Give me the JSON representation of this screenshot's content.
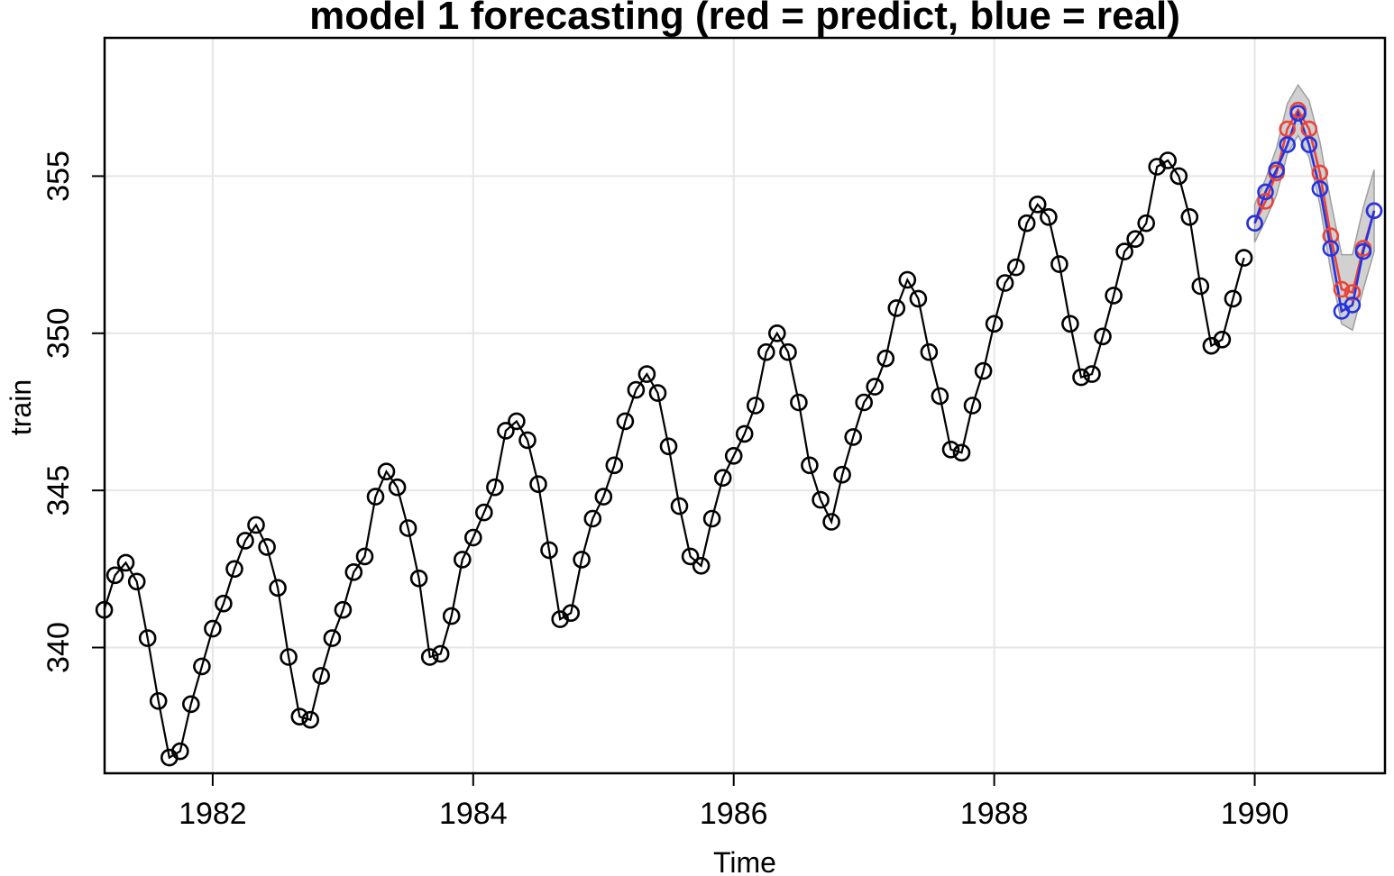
{
  "chart_data": {
    "type": "line",
    "title": "model 1 forecasting (red = predict, blue = real)",
    "xlabel": "Time",
    "ylabel": "train",
    "xlim": [
      1981.17,
      1991.0
    ],
    "ylim": [
      336.0,
      359.4
    ],
    "xticks": [
      1982,
      1984,
      1986,
      1988,
      1990
    ],
    "yticks": [
      340,
      345,
      350,
      355
    ],
    "grid": true,
    "colors": {
      "train": "#000000",
      "predict": "#e8443a",
      "real": "#2433e0",
      "band": "#bdbdbd"
    },
    "series": [
      {
        "role": "train",
        "x": [
          1981.167,
          1981.25,
          1981.333,
          1981.417,
          1981.5,
          1981.583,
          1981.667,
          1981.75,
          1981.833,
          1981.917,
          1982.0,
          1982.083,
          1982.167,
          1982.25,
          1982.333,
          1982.417,
          1982.5,
          1982.583,
          1982.667,
          1982.75,
          1982.833,
          1982.917,
          1983.0,
          1983.083,
          1983.167,
          1983.25,
          1983.333,
          1983.417,
          1983.5,
          1983.583,
          1983.667,
          1983.75,
          1983.833,
          1983.917,
          1984.0,
          1984.083,
          1984.167,
          1984.25,
          1984.333,
          1984.417,
          1984.5,
          1984.583,
          1984.667,
          1984.75,
          1984.833,
          1984.917,
          1985.0,
          1985.083,
          1985.167,
          1985.25,
          1985.333,
          1985.417,
          1985.5,
          1985.583,
          1985.667,
          1985.75,
          1985.833,
          1985.917,
          1986.0,
          1986.083,
          1986.167,
          1986.25,
          1986.333,
          1986.417,
          1986.5,
          1986.583,
          1986.667,
          1986.75,
          1986.833,
          1986.917,
          1987.0,
          1987.083,
          1987.167,
          1987.25,
          1987.333,
          1987.417,
          1987.5,
          1987.583,
          1987.667,
          1987.75,
          1987.833,
          1987.917,
          1988.0,
          1988.083,
          1988.167,
          1988.25,
          1988.333,
          1988.417,
          1988.5,
          1988.583,
          1988.667,
          1988.75,
          1988.833,
          1988.917,
          1989.0,
          1989.083,
          1989.167,
          1989.25,
          1989.333,
          1989.417,
          1989.5,
          1989.583,
          1989.667,
          1989.75,
          1989.833,
          1989.917
        ],
        "values": [
          341.2,
          342.3,
          342.7,
          342.1,
          340.3,
          338.3,
          336.5,
          336.7,
          338.2,
          339.4,
          340.6,
          341.4,
          342.5,
          343.4,
          343.9,
          343.2,
          341.9,
          339.7,
          337.8,
          337.7,
          339.1,
          340.3,
          341.2,
          342.4,
          342.9,
          344.8,
          345.6,
          345.1,
          343.8,
          342.2,
          339.7,
          339.8,
          341.0,
          342.8,
          343.5,
          344.3,
          345.1,
          346.9,
          347.2,
          346.6,
          345.2,
          343.1,
          340.9,
          341.1,
          342.8,
          344.1,
          344.8,
          345.8,
          347.2,
          348.2,
          348.7,
          348.1,
          346.4,
          344.5,
          342.9,
          342.6,
          344.1,
          345.4,
          346.1,
          346.8,
          347.7,
          349.4,
          350.0,
          349.4,
          347.8,
          345.8,
          344.7,
          344.0,
          345.5,
          346.7,
          347.8,
          348.3,
          349.2,
          350.8,
          351.7,
          351.1,
          349.4,
          348.0,
          346.3,
          346.2,
          347.7,
          348.8,
          350.3,
          351.6,
          352.1,
          353.5,
          354.1,
          353.7,
          352.2,
          350.3,
          348.6,
          348.7,
          349.9,
          351.2,
          352.6,
          353.0,
          353.5,
          355.3,
          355.5,
          355.0,
          353.7,
          351.5,
          349.6,
          349.8,
          351.1,
          352.4
        ]
      },
      {
        "role": "predict",
        "x": [
          1990.0,
          1990.083,
          1990.167,
          1990.25,
          1990.333,
          1990.417,
          1990.5,
          1990.583,
          1990.667,
          1990.75,
          1990.833,
          1990.917
        ],
        "values": [
          353.5,
          354.2,
          355.1,
          356.5,
          357.1,
          356.5,
          355.1,
          353.1,
          351.4,
          351.3,
          352.7,
          353.9
        ],
        "lower": [
          352.9,
          353.6,
          354.4,
          355.7,
          356.3,
          355.6,
          354.1,
          352.0,
          350.3,
          350.1,
          351.4,
          352.6
        ],
        "upper": [
          354.1,
          354.9,
          355.9,
          357.3,
          357.9,
          357.4,
          356.1,
          354.2,
          352.5,
          352.5,
          354.0,
          355.2
        ]
      },
      {
        "role": "real",
        "x": [
          1990.0,
          1990.083,
          1990.167,
          1990.25,
          1990.333,
          1990.417,
          1990.5,
          1990.583,
          1990.667,
          1990.75,
          1990.833,
          1990.917
        ],
        "values": [
          353.5,
          354.5,
          355.2,
          356.0,
          357.0,
          356.0,
          354.6,
          352.7,
          350.7,
          350.9,
          352.6,
          353.9
        ]
      }
    ]
  }
}
